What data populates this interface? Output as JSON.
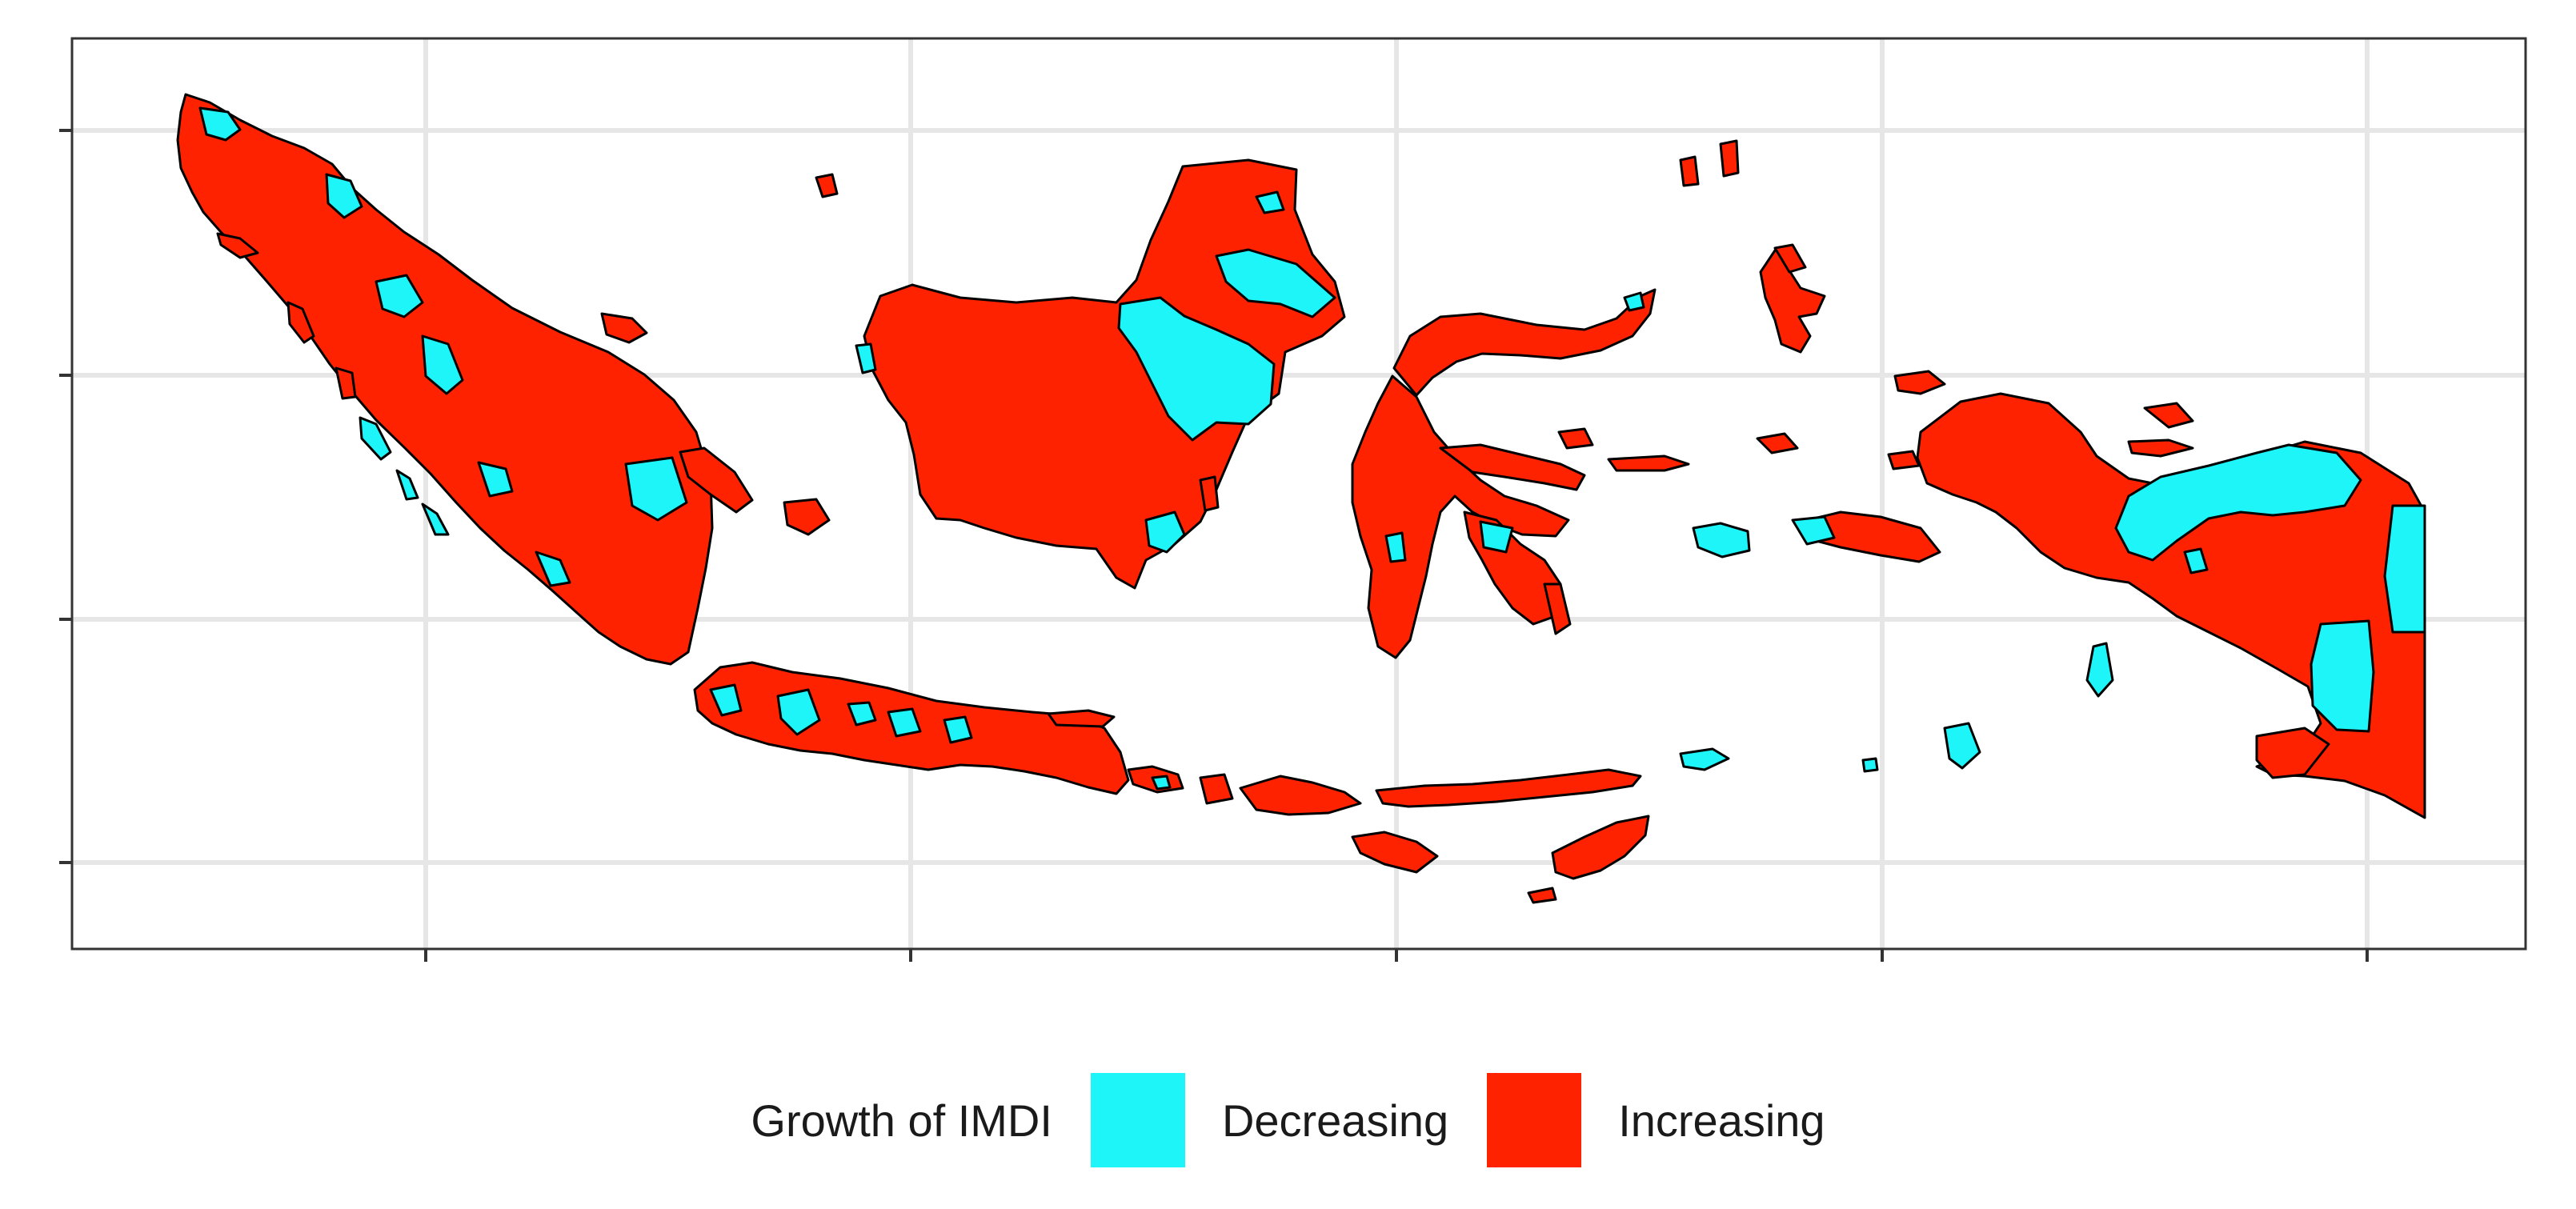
{
  "map": {
    "type": "choropleth",
    "region": "Indonesia",
    "axis_tick_labels_shown": false,
    "grid": true,
    "colors": {
      "decreasing": "#1df5f8",
      "increasing": "#ff2200",
      "border": "#000000",
      "inner_border": "#ffffff",
      "panel_border": "#333333",
      "grid": "#e6e6e6"
    }
  },
  "legend": {
    "title": "Growth of IMDI",
    "position": "bottom",
    "items": [
      {
        "label": "Decreasing",
        "color": "#1df5f8"
      },
      {
        "label": "Increasing",
        "color": "#ff2200"
      }
    ]
  }
}
